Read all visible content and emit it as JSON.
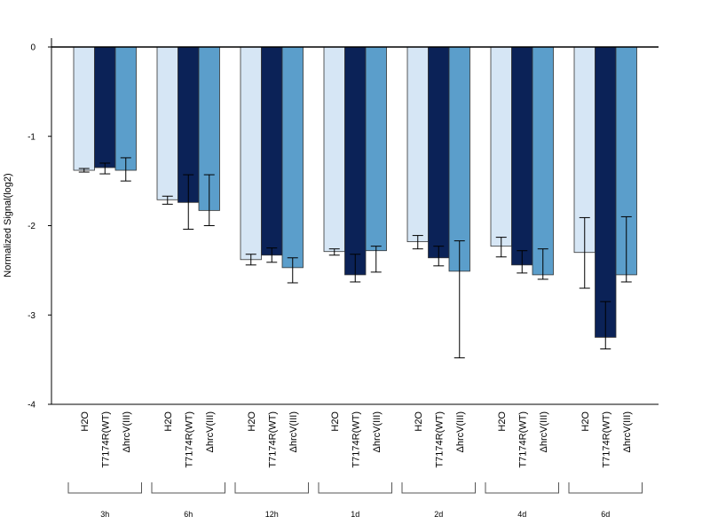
{
  "chart_data": {
    "type": "bar",
    "title": "",
    "xlabel": "",
    "ylabel": "Normalized Signal(log2)",
    "ylim": [
      -4,
      0
    ],
    "yticks": [
      0,
      -1,
      -2,
      -3,
      -4
    ],
    "ytick_labels": [
      "0",
      "-1",
      "-2",
      "-3",
      "-4"
    ],
    "grid": false,
    "legend": "none",
    "groups": [
      "3h",
      "6h",
      "12h",
      "1d",
      "2d",
      "4d",
      "6d"
    ],
    "series": [
      {
        "label": "H2O",
        "color": "#d6e6f5",
        "values": [
          -1.38,
          -1.71,
          -2.38,
          -2.29,
          -2.18,
          -2.23,
          -2.3
        ],
        "error_low": [
          -1.4,
          -1.76,
          -2.44,
          -2.33,
          -2.26,
          -2.35,
          -2.7
        ],
        "error_high": [
          -1.36,
          -1.67,
          -2.32,
          -2.26,
          -2.11,
          -2.13,
          -1.91
        ]
      },
      {
        "label": "T7174R(WT)",
        "color": "#0b2257",
        "values": [
          -1.35,
          -1.74,
          -2.33,
          -2.55,
          -2.36,
          -2.44,
          -3.25
        ],
        "error_low": [
          -1.42,
          -2.04,
          -2.41,
          -2.63,
          -2.45,
          -2.53,
          -3.38
        ],
        "error_high": [
          -1.3,
          -1.43,
          -2.25,
          -2.32,
          -2.23,
          -2.28,
          -2.85
        ]
      },
      {
        "label": "ΔhrcV(III)",
        "color": "#5b9ecb",
        "values": [
          -1.38,
          -1.83,
          -2.47,
          -2.28,
          -2.51,
          -2.55,
          -2.55
        ],
        "error_low": [
          -1.5,
          -2.0,
          -2.64,
          -2.52,
          -3.48,
          -2.6,
          -2.63
        ],
        "error_high": [
          -1.24,
          -1.43,
          -2.36,
          -2.23,
          -2.17,
          -2.26,
          -1.9
        ]
      }
    ]
  }
}
